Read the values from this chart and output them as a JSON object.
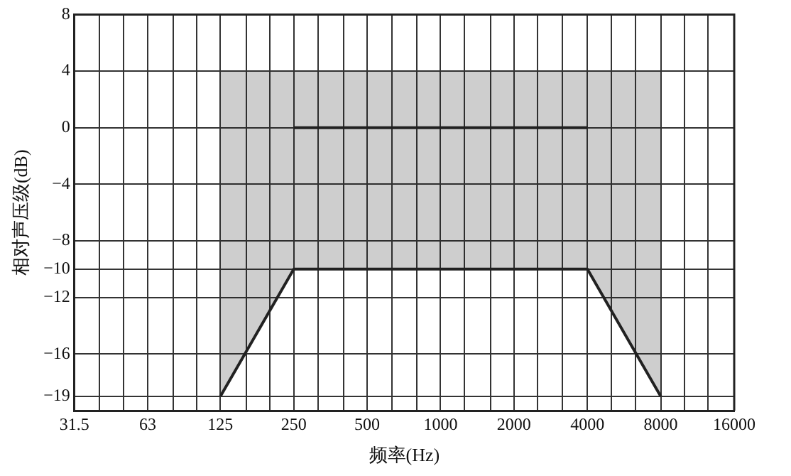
{
  "chart_data": {
    "type": "line",
    "xlabel": "频率(Hz)",
    "ylabel": "相对声压级(dB)",
    "log": "x",
    "xlim": [
      31.5,
      16000
    ],
    "xticks": [
      31.5,
      {
        "value": 40,
        "label": null
      },
      {
        "value": 50,
        "label": null
      },
      63,
      {
        "value": 80,
        "label": null
      },
      {
        "value": 100,
        "label": null
      },
      125,
      {
        "value": 160,
        "label": null
      },
      {
        "value": 200,
        "label": null
      },
      250,
      {
        "value": 315,
        "label": null
      },
      {
        "value": 400,
        "label": null
      },
      500,
      {
        "value": 630,
        "label": null
      },
      {
        "value": 800,
        "label": null
      },
      1000,
      {
        "value": 1250,
        "label": null
      },
      {
        "value": 1600,
        "label": null
      },
      2000,
      {
        "value": 2500,
        "label": null
      },
      {
        "value": 3150,
        "label": null
      },
      4000,
      {
        "value": 5000,
        "label": null
      },
      {
        "value": 6300,
        "label": null
      },
      8000,
      {
        "value": 10000,
        "label": null
      },
      {
        "value": 12500,
        "label": null
      },
      16000
    ],
    "ylim": [
      -20,
      8
    ],
    "yticks": [
      8,
      4,
      0,
      -4,
      -8,
      -10,
      -12,
      -16,
      -19
    ],
    "grid": true,
    "legend": false,
    "marker": "none",
    "line_style": "solid",
    "series": [
      {
        "color": "#222222",
        "x": [
          125,
          250,
          4000,
          8000
        ],
        "values": [
          null,
          0,
          0,
          null
        ],
        "lower": [
          -19,
          -10,
          -10,
          -19
        ],
        "upper": [
          4,
          4,
          4,
          4
        ]
      },
      {
        "color": "#222222",
        "x": [
          125,
          250,
          4000,
          8000
        ],
        "values": [
          -19,
          -10,
          -10,
          -19
        ]
      }
    ]
  }
}
